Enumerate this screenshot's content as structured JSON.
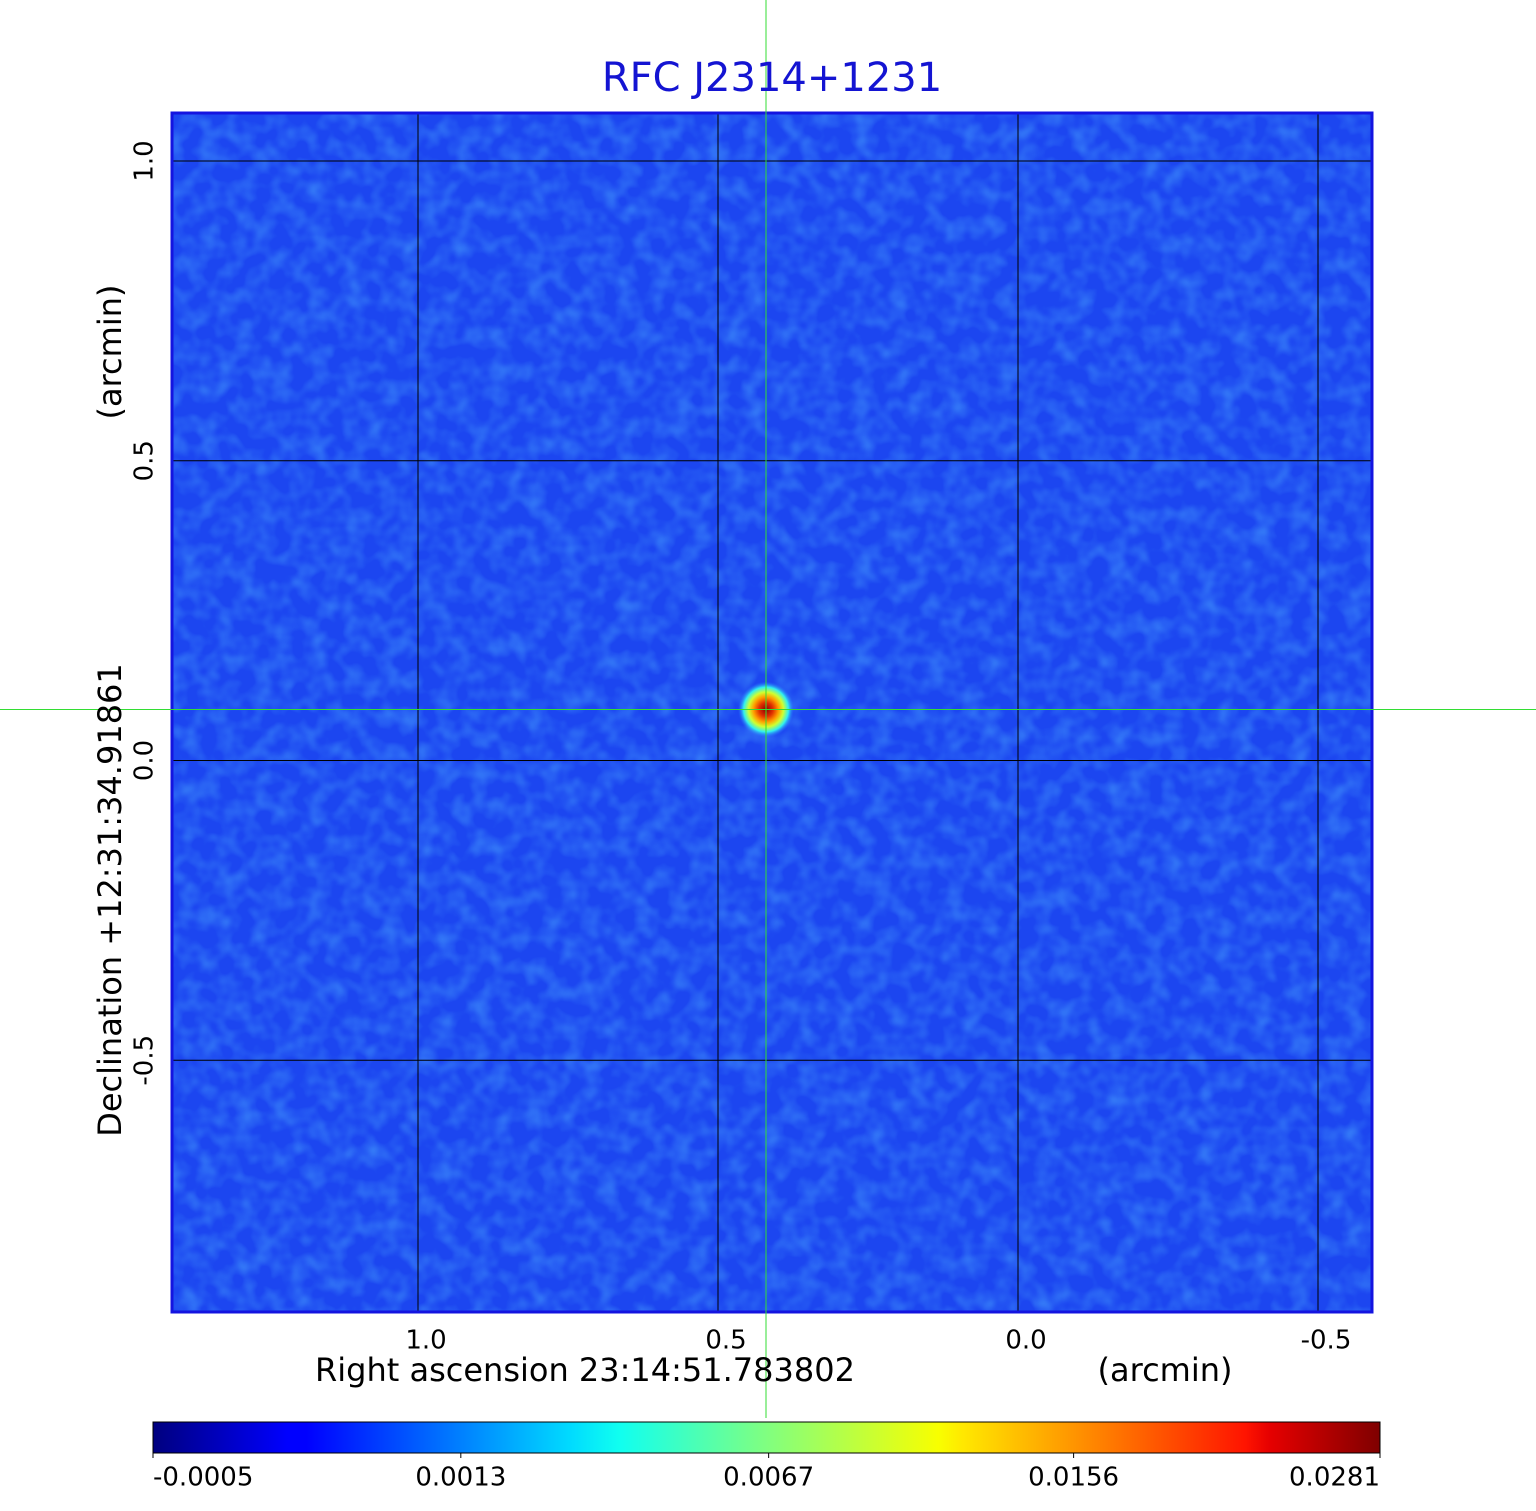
{
  "chart_data": {
    "type": "image",
    "title": "RFC J2314+1231",
    "xlabel": "Right ascension  23:14:51.783802",
    "xunit": "(arcmin)",
    "ylabel": "Declination  +12:31:34.91861",
    "yunit": "(arcmin)",
    "xlim": [
      1.41,
      -0.59
    ],
    "ylim": [
      -0.92,
      1.08
    ],
    "xticks": [
      {
        "value": 1,
        "label": "1.0"
      },
      0.5,
      {
        "value": 0,
        "label": "0.0"
      },
      -0.5
    ],
    "yticks": [
      -0.5,
      {
        "value": 0,
        "label": "0.0"
      },
      0.5,
      {
        "value": 1,
        "label": "1.0"
      }
    ],
    "grid": true,
    "crosshair": [
      0.42,
      0.085
    ],
    "colormap": "jet",
    "colorbar_scale": "sqrt",
    "clim": [
      -0.0005,
      0.0281
    ],
    "colorbar_ticks": [
      -0.0005,
      0.0013,
      0.0067,
      0.0156,
      0.0281
    ]
  }
}
